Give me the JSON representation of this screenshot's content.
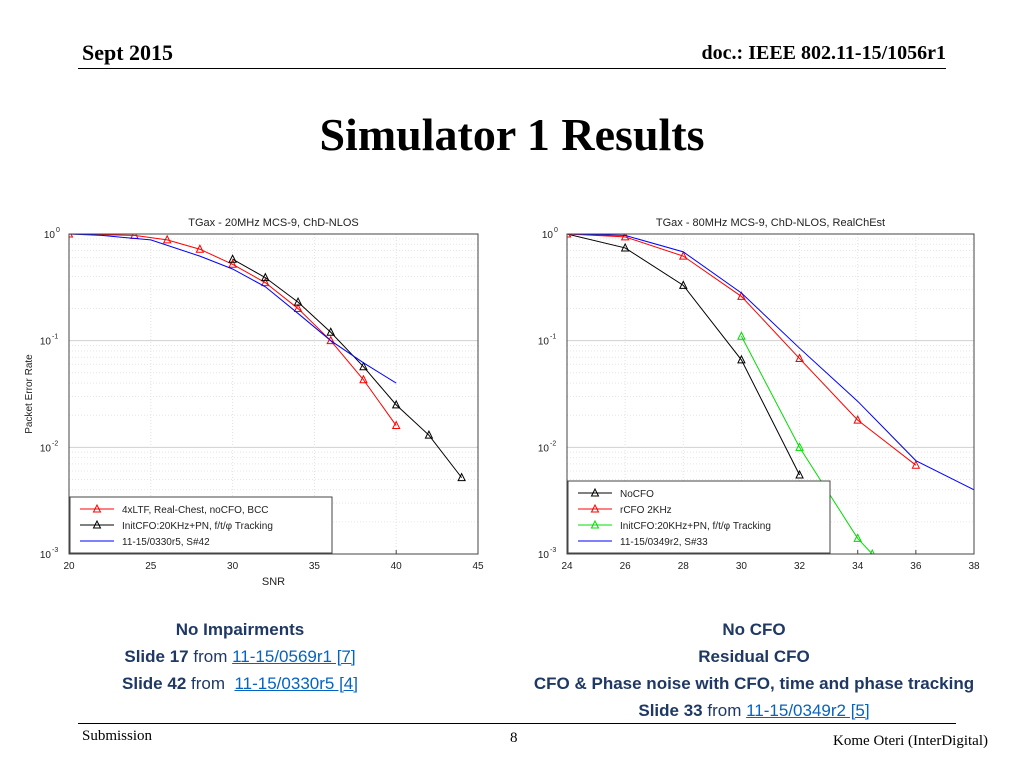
{
  "header": {
    "date": "Sept 2015",
    "doc": "doc.: IEEE 802.11-15/1056r1"
  },
  "slide_title": "Simulator 1 Results",
  "chart_data": [
    {
      "type": "line",
      "title": "TGax - 20MHz MCS-9, ChD-NLOS",
      "xlabel": "SNR",
      "ylabel": "Packet Error Rate",
      "xlim": [
        20,
        45
      ],
      "ylim": [
        0.001,
        1
      ],
      "yscale": "log",
      "xticks": [
        20,
        25,
        30,
        35,
        40,
        45
      ],
      "yticks": [
        "10^0",
        "10^-1",
        "10^-2",
        "10^-3"
      ],
      "grid": true,
      "legend_position": "bottom-left",
      "series": [
        {
          "name": "4xLTF, Real-Chest, noCFO, BCC",
          "color": "#ff0000",
          "marker": "triangle",
          "x": [
            20,
            24,
            26,
            28,
            30,
            32,
            34,
            36,
            38,
            40
          ],
          "y": [
            1.0,
            0.97,
            0.88,
            0.72,
            0.52,
            0.35,
            0.2,
            0.1,
            0.043,
            0.016
          ]
        },
        {
          "name": "InitCFO:20KHz+PN, f/t/φ Tracking",
          "color": "#000000",
          "marker": "triangle",
          "x": [
            30,
            32,
            34,
            36,
            38,
            40,
            42,
            44
          ],
          "y": [
            0.58,
            0.39,
            0.23,
            0.12,
            0.057,
            0.025,
            0.013,
            0.0052
          ]
        },
        {
          "name": "11-15/0330r5, S#42",
          "color": "#0000ff",
          "marker": "none",
          "x": [
            20,
            22,
            25,
            28,
            30,
            32,
            34,
            36,
            38,
            40
          ],
          "y": [
            1.0,
            0.97,
            0.88,
            0.62,
            0.47,
            0.32,
            0.18,
            0.1,
            0.062,
            0.04
          ]
        }
      ]
    },
    {
      "type": "line",
      "title": "TGax - 80MHz MCS-9, ChD-NLOS, RealChEst",
      "xlabel": "",
      "ylabel": "",
      "xlim": [
        24,
        38
      ],
      "ylim": [
        0.001,
        1
      ],
      "yscale": "log",
      "xticks": [
        24,
        26,
        28,
        30,
        32,
        34,
        36,
        38
      ],
      "yticks": [
        "10^0",
        "10^-1",
        "10^-2",
        "10^-3"
      ],
      "grid": true,
      "legend_position": "bottom-left",
      "series": [
        {
          "name": "NoCFO",
          "color": "#000000",
          "marker": "triangle",
          "x": [
            24,
            26,
            28,
            30,
            32
          ],
          "y": [
            1.0,
            0.74,
            0.33,
            0.066,
            0.0055
          ]
        },
        {
          "name": "rCFO 2KHz",
          "color": "#ff0000",
          "marker": "triangle",
          "x": [
            24,
            26,
            28,
            30,
            32,
            34,
            36
          ],
          "y": [
            1.0,
            0.94,
            0.62,
            0.26,
            0.068,
            0.018,
            0.0068
          ]
        },
        {
          "name": "InitCFO:20KHz+PN, f/t/φ Tracking",
          "color": "#00dd00",
          "marker": "triangle",
          "x": [
            30,
            32,
            34,
            34.5
          ],
          "y": [
            0.11,
            0.01,
            0.0014,
            0.001
          ]
        },
        {
          "name": "11-15/0349r2, S#33",
          "color": "#0000ff",
          "marker": "none",
          "x": [
            24,
            26,
            28,
            30,
            32,
            34,
            36,
            38
          ],
          "y": [
            1.0,
            0.97,
            0.68,
            0.28,
            0.085,
            0.027,
            0.0075,
            0.004
          ]
        }
      ]
    }
  ],
  "captions": {
    "left": {
      "line1": "No Impairments",
      "line2_bold": "Slide 17",
      "line2_from": "from",
      "line2_link": "11-15/0569r1 [7]",
      "line3_bold": "Slide 42",
      "line3_from": "from",
      "line3_link": "11-15/0330r5 [4]"
    },
    "right": {
      "line1": "No CFO",
      "line2": "Residual CFO",
      "line3": "CFO & Phase noise with CFO, time and phase tracking",
      "line4_bold": "Slide 33",
      "line4_from": "from",
      "line4_link": "11-15/0349r2 [5] "
    }
  },
  "footer": {
    "left": "Submission",
    "page": "8",
    "right": "Kome Oteri (InterDigital)"
  }
}
